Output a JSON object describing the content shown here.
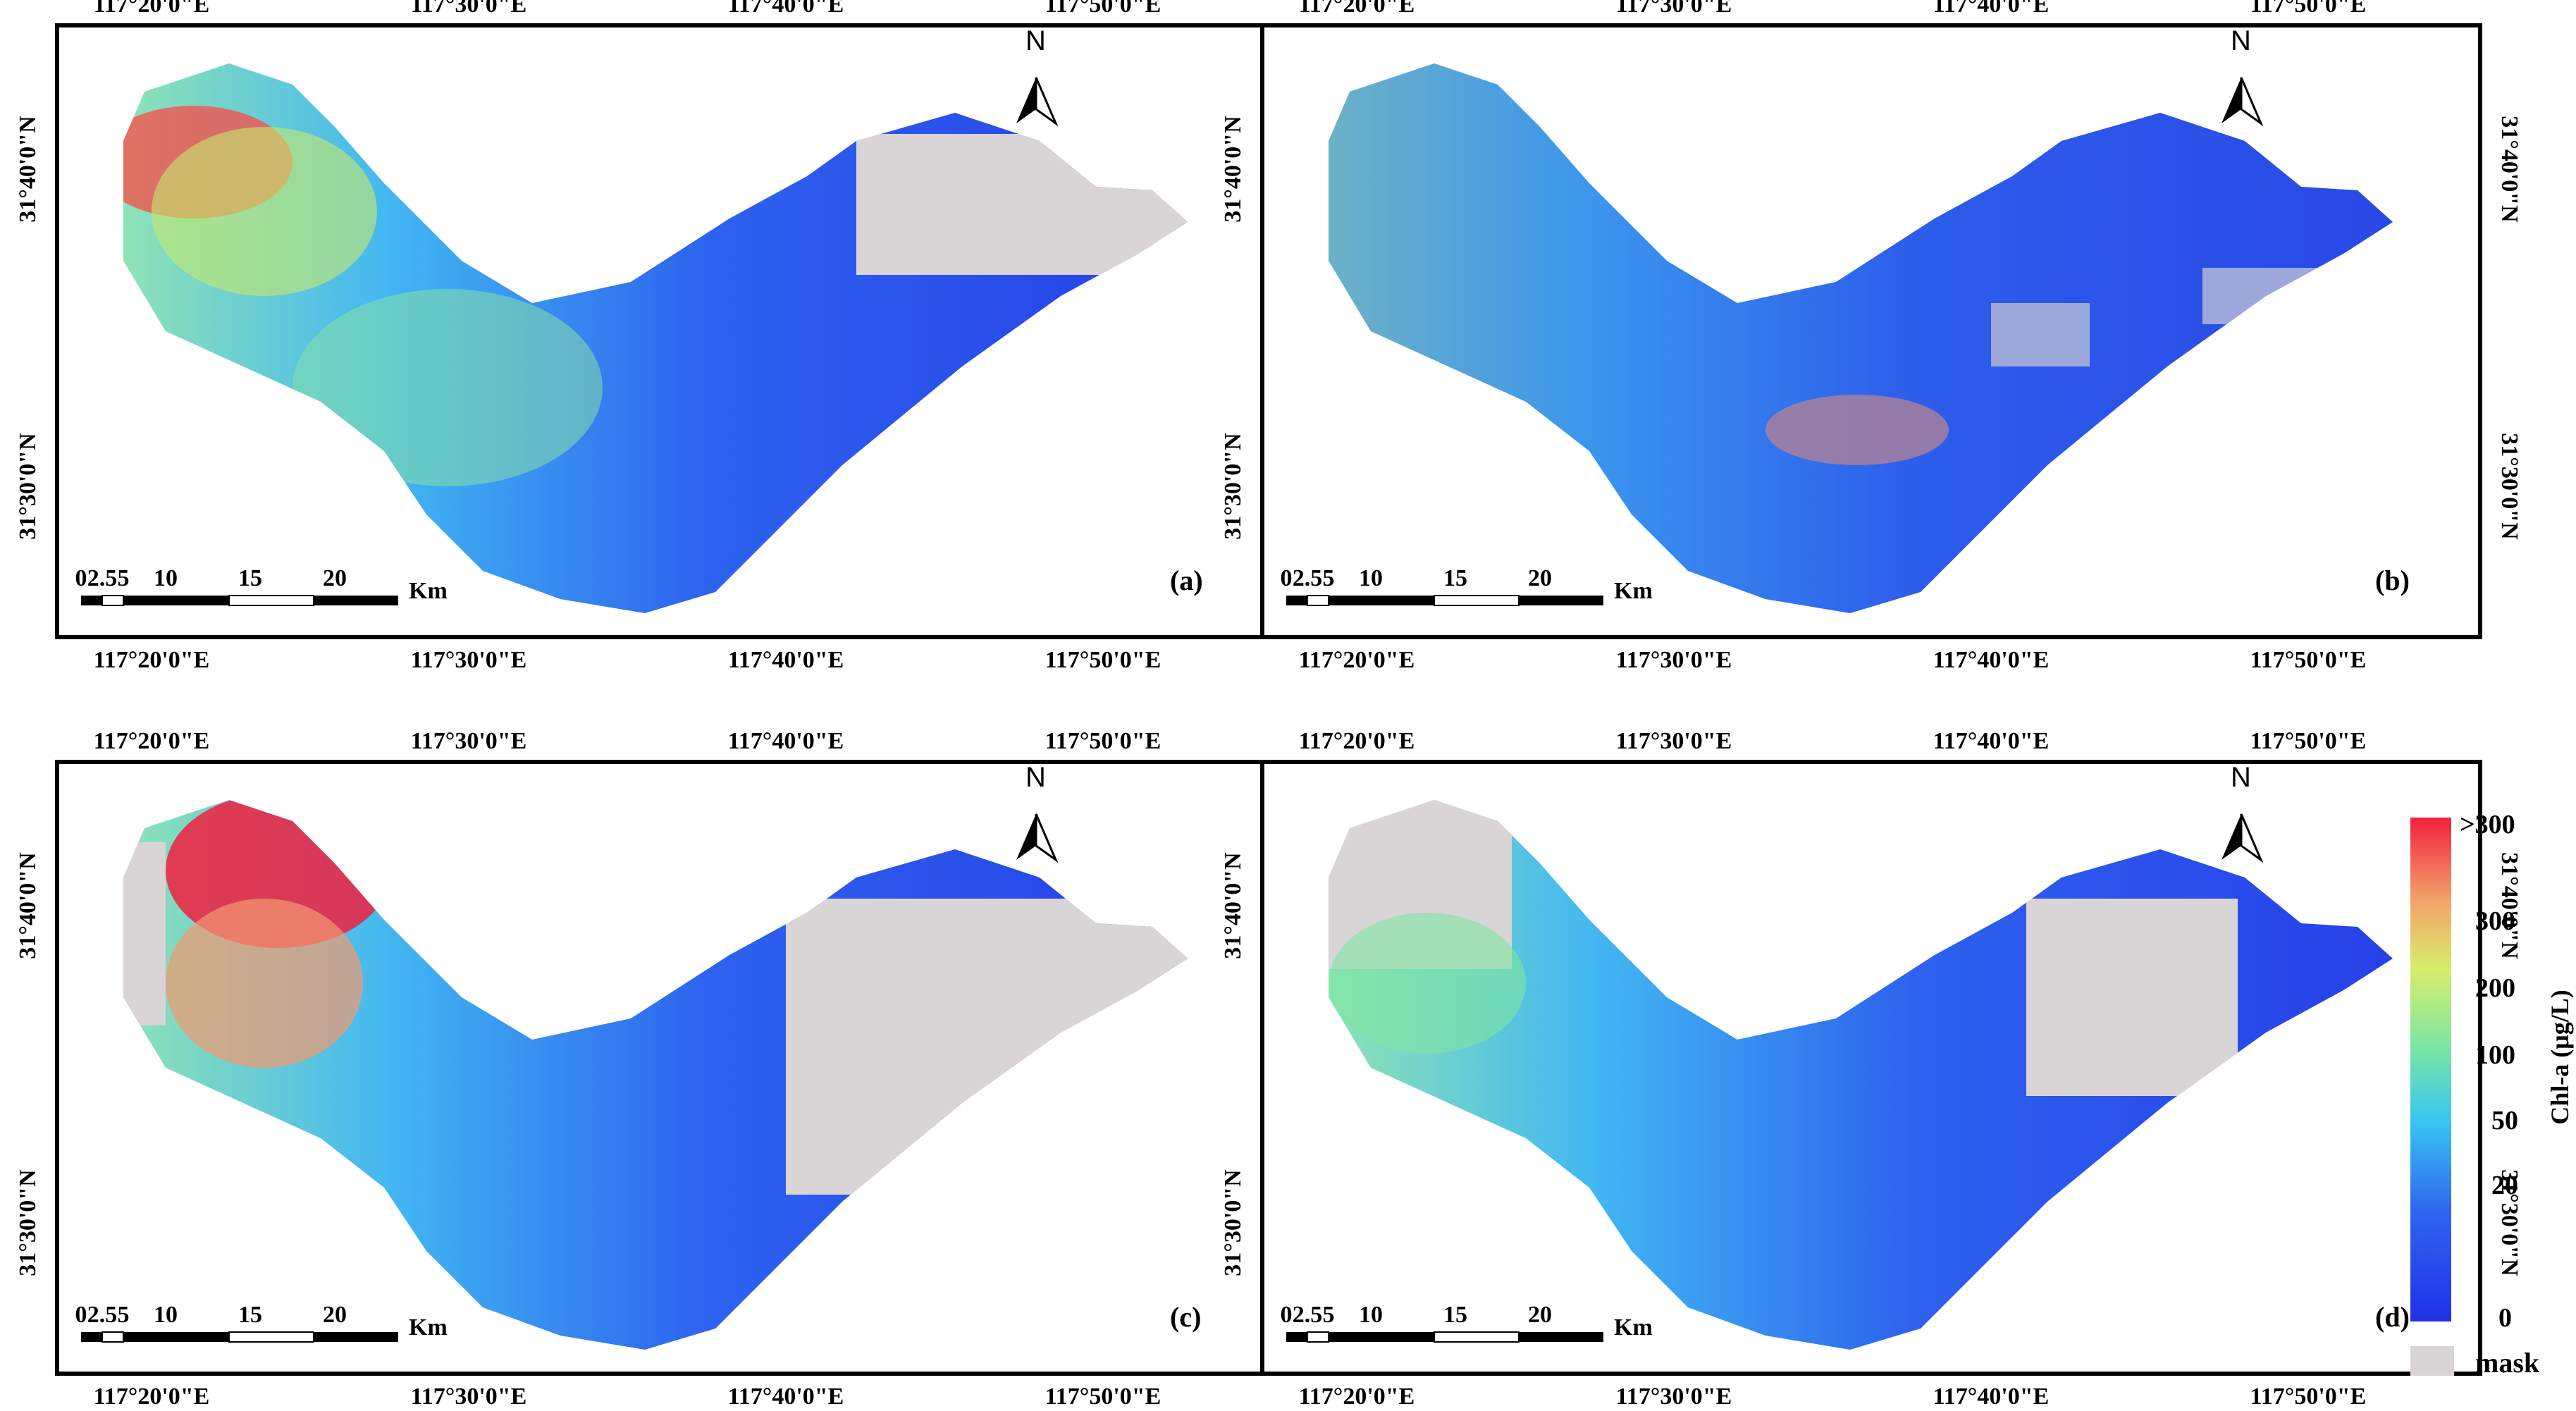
{
  "axis": {
    "lon_labels": [
      "117°20'0\"E",
      "117°30'0\"E",
      "117°40'0\"E",
      "117°50'0\"E"
    ],
    "lat_labels": [
      "31°40'0\"N",
      "31°30'0\"N"
    ]
  },
  "scalebar": {
    "labels": [
      "0",
      "2.5",
      "5",
      "10",
      "15",
      "20"
    ],
    "unit": "Km"
  },
  "north_arrow": {
    "label": "N"
  },
  "panels": [
    {
      "id": "a",
      "label": "(a)"
    },
    {
      "id": "b",
      "label": "(b)"
    },
    {
      "id": "c",
      "label": "(c)"
    },
    {
      "id": "d",
      "label": "(d)"
    }
  ],
  "legend": {
    "title": "Chl-a (μg/L)",
    "ticks": [
      ">300",
      "300",
      "200",
      "100",
      "50",
      "20",
      "0"
    ],
    "mask_label": "mask",
    "colors": {
      "red": "#f0304a",
      "orange": "#f39a6a",
      "yellow": "#d8ee6a",
      "green": "#79e69b",
      "cyan": "#38c8f0",
      "blue": "#2f64f0",
      "deep_blue": "#2233e8",
      "mask": "#d9d4d6"
    }
  }
}
